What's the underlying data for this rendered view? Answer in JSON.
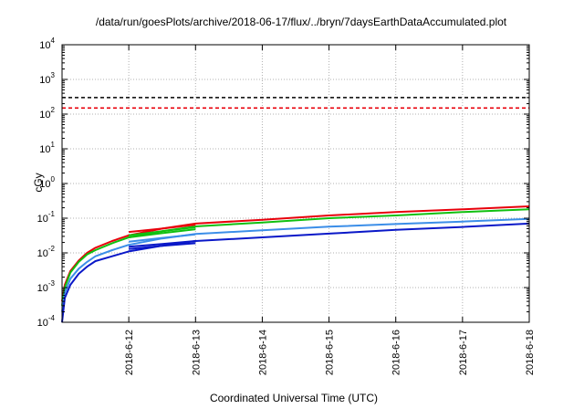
{
  "chart_data": {
    "type": "line",
    "title": "/data/run/goesPlots/archive/2018-06-17/flux/../bryn/7daysEarthDataAccumulated.plot",
    "xlabel": "Coordinated Universal Time (UTC)",
    "ylabel": "cGy",
    "xlim": [
      "2018-06-11",
      "2018-06-18"
    ],
    "ylim": [
      0.0001,
      10000
    ],
    "yscale": "log",
    "grid": true,
    "x_ticks": [
      "2018-6-12",
      "2018-6-13",
      "2018-6-14",
      "2018-6-15",
      "2018-6-16",
      "2018-6-17",
      "2018-6-18"
    ],
    "y_ticks": [
      {
        "base": "10",
        "exp": "-4"
      },
      {
        "base": "10",
        "exp": "-3"
      },
      {
        "base": "10",
        "exp": "-2"
      },
      {
        "base": "10",
        "exp": "-1"
      },
      {
        "base": "10",
        "exp": "0"
      },
      {
        "base": "10",
        "exp": "1"
      },
      {
        "base": "10",
        "exp": "2"
      },
      {
        "base": "10",
        "exp": "3"
      },
      {
        "base": "10",
        "exp": "4"
      }
    ],
    "thresholds": [
      {
        "value": 300,
        "color": "#000000",
        "style": "dashed"
      },
      {
        "value": 150,
        "color": "#e8000b",
        "style": "dashed"
      }
    ],
    "series": [
      {
        "color": "#e8000b",
        "x": [
          "2018-06-11 00:00",
          "2018-06-11 01:00",
          "2018-06-11 03:00",
          "2018-06-11 06:00",
          "2018-06-11 09:00",
          "2018-06-11 12:00",
          "2018-06-11 18:00",
          "2018-06-12 00:00",
          "2018-06-12 12:00",
          "2018-06-13 00:00",
          "2018-06-14 00:00",
          "2018-06-15 00:00",
          "2018-06-16 00:00",
          "2018-06-17 00:00",
          "2018-06-18 00:00"
        ],
        "y": [
          0.0004,
          0.0012,
          0.003,
          0.006,
          0.01,
          0.014,
          0.022,
          0.032,
          0.05,
          0.07,
          0.09,
          0.12,
          0.15,
          0.18,
          0.22
        ]
      },
      {
        "color": "#10c010",
        "x": [
          "2018-06-11 00:00",
          "2018-06-11 01:00",
          "2018-06-11 03:00",
          "2018-06-11 06:00",
          "2018-06-11 09:00",
          "2018-06-11 12:00",
          "2018-06-11 18:00",
          "2018-06-12 00:00",
          "2018-06-12 12:00",
          "2018-06-13 00:00",
          "2018-06-14 00:00",
          "2018-06-15 00:00",
          "2018-06-16 00:00",
          "2018-06-17 00:00",
          "2018-06-18 00:00"
        ],
        "y": [
          0.0003,
          0.001,
          0.0027,
          0.0055,
          0.009,
          0.012,
          0.019,
          0.028,
          0.042,
          0.058,
          0.075,
          0.1,
          0.12,
          0.15,
          0.18
        ]
      },
      {
        "color": "#3b8ee8",
        "x": [
          "2018-06-11 00:00",
          "2018-06-11 01:00",
          "2018-06-11 03:00",
          "2018-06-11 06:00",
          "2018-06-11 09:00",
          "2018-06-11 12:00",
          "2018-06-11 18:00",
          "2018-06-12 00:00",
          "2018-06-12 12:00",
          "2018-06-13 00:00",
          "2018-06-14 00:00",
          "2018-06-15 00:00",
          "2018-06-16 00:00",
          "2018-06-17 00:00",
          "2018-06-18 00:00"
        ],
        "y": [
          0.0002,
          0.0007,
          0.0018,
          0.0035,
          0.0055,
          0.008,
          0.012,
          0.017,
          0.026,
          0.035,
          0.045,
          0.057,
          0.068,
          0.08,
          0.095
        ]
      },
      {
        "color": "#0a18c8",
        "x": [
          "2018-06-11 00:00",
          "2018-06-11 01:00",
          "2018-06-11 03:00",
          "2018-06-11 06:00",
          "2018-06-11 09:00",
          "2018-06-11 12:00",
          "2018-06-11 18:00",
          "2018-06-12 00:00",
          "2018-06-12 12:00",
          "2018-06-13 00:00",
          "2018-06-14 00:00",
          "2018-06-15 00:00",
          "2018-06-16 00:00",
          "2018-06-17 00:00",
          "2018-06-18 00:00"
        ],
        "y": [
          0.0001,
          0.0005,
          0.0012,
          0.0025,
          0.004,
          0.0058,
          0.008,
          0.011,
          0.016,
          0.022,
          0.028,
          0.036,
          0.046,
          0.056,
          0.07
        ]
      },
      {
        "color": "#e8000b",
        "x": [
          "2018-06-12 00:00",
          "2018-06-12 12:00",
          "2018-06-13 00:00"
        ],
        "y": [
          0.04,
          0.05,
          0.065
        ]
      },
      {
        "color": "#10c010",
        "x": [
          "2018-06-12 00:00",
          "2018-06-12 12:00",
          "2018-06-13 00:00"
        ],
        "y": [
          0.032,
          0.042,
          0.055
        ]
      },
      {
        "color": "#10c010",
        "x": [
          "2018-06-12 00:00",
          "2018-06-12 12:00",
          "2018-06-13 00:00"
        ],
        "y": [
          0.028,
          0.037,
          0.048
        ]
      },
      {
        "color": "#3b8ee8",
        "x": [
          "2018-06-12 00:00",
          "2018-06-12 12:00",
          "2018-06-13 00:00"
        ],
        "y": [
          0.021,
          0.027,
          0.034
        ]
      },
      {
        "color": "#0a18c8",
        "x": [
          "2018-06-12 00:00",
          "2018-06-12 12:00",
          "2018-06-13 00:00"
        ],
        "y": [
          0.015,
          0.018,
          0.022
        ]
      },
      {
        "color": "#0a18c8",
        "x": [
          "2018-06-12 00:00",
          "2018-06-12 12:00",
          "2018-06-13 00:00"
        ],
        "y": [
          0.013,
          0.016,
          0.019
        ]
      }
    ]
  }
}
